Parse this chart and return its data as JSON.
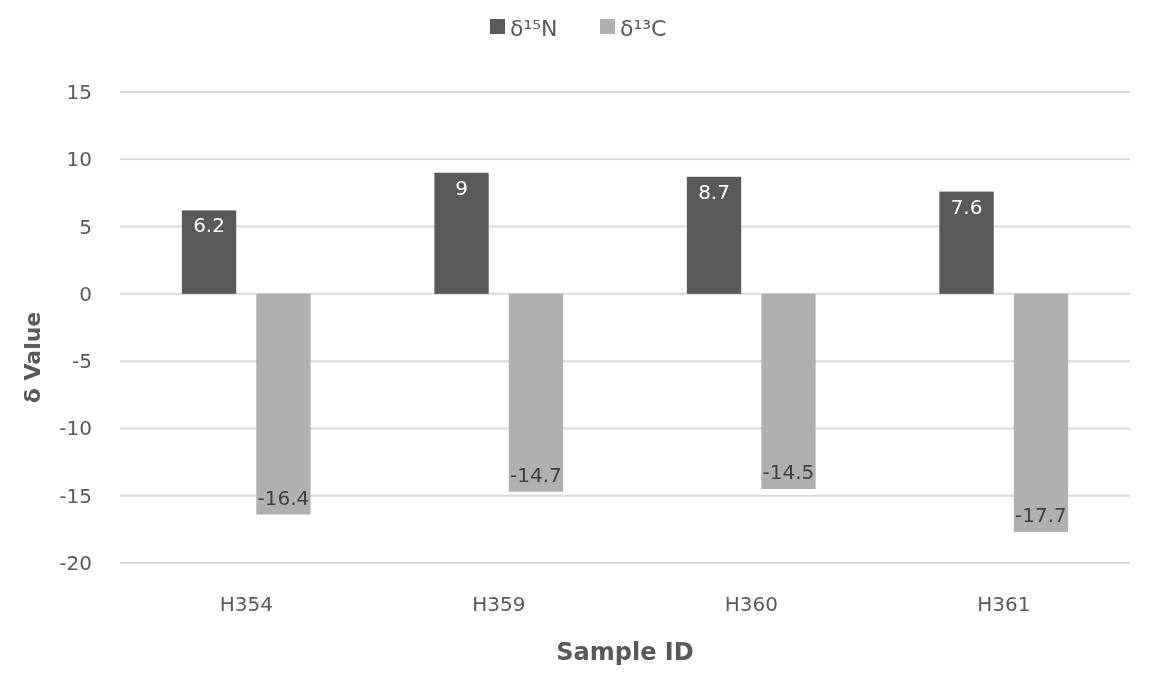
{
  "chart_data": {
    "type": "bar",
    "xlabel": "Sample ID",
    "ylabel": "δ Value",
    "categories": [
      "H354",
      "H359",
      "H360",
      "H361"
    ],
    "series": [
      {
        "name": "δ¹⁵N",
        "color": "#595959",
        "values": [
          6.2,
          9,
          8.7,
          7.6
        ]
      },
      {
        "name": "δ¹³C",
        "color": "#b0b0b0",
        "values": [
          -16.4,
          -14.7,
          -14.5,
          -17.7
        ]
      }
    ],
    "ylim": [
      -20,
      15
    ],
    "yticks": [
      -20,
      -15,
      -10,
      -5,
      0,
      5,
      10,
      15
    ],
    "grid": "y",
    "legend": "top",
    "data_labels": true
  }
}
